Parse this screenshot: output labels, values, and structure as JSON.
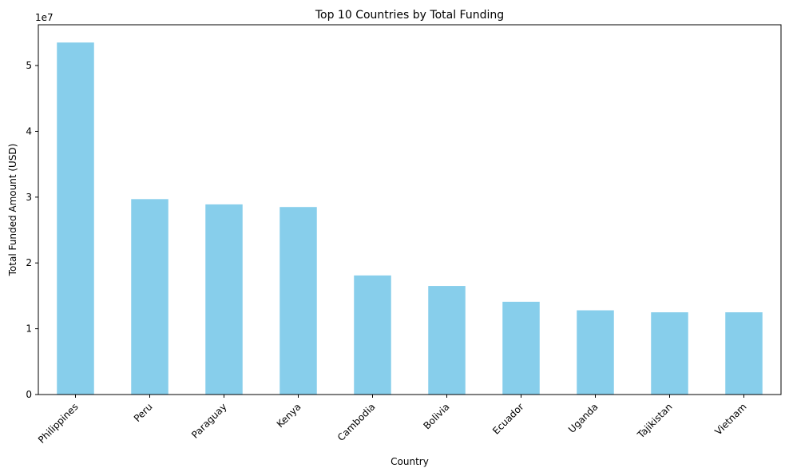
{
  "chart_data": {
    "type": "bar",
    "title": "Top 10 Countries by Total Funding",
    "xlabel": "Country",
    "ylabel": "Total Funded Amount (USD)",
    "y_offset_label": "1e7",
    "categories": [
      "Philippines",
      "Peru",
      "Paraguay",
      "Kenya",
      "Cambodia",
      "Bolivia",
      "Ecuador",
      "Uganda",
      "Tajikistan",
      "Vietnam"
    ],
    "values": [
      53500000,
      29700000,
      28900000,
      28500000,
      18100000,
      16500000,
      14100000,
      12800000,
      12500000,
      12500000
    ],
    "y_ticks": [
      0,
      10000000,
      20000000,
      30000000,
      40000000,
      50000000
    ],
    "y_tick_labels": [
      "0",
      "1",
      "2",
      "3",
      "4",
      "5"
    ],
    "ylim": [
      0,
      56200000
    ],
    "bar_color": "#87ceeb",
    "grid": false,
    "legend": "none"
  }
}
